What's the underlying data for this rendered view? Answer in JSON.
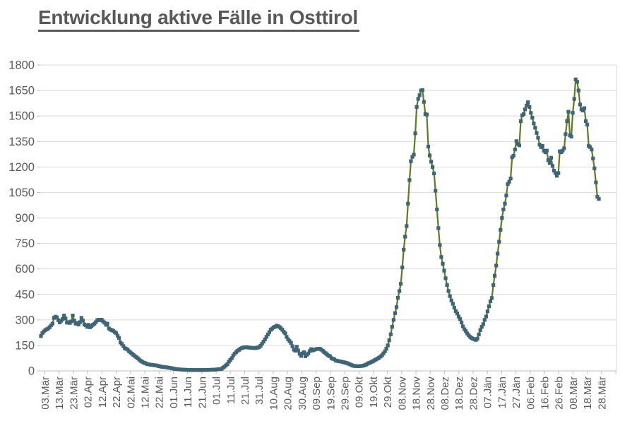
{
  "page": {
    "background": "#ffffff"
  },
  "chart_data": {
    "type": "line",
    "title": "Entwicklung aktive Fälle in Osttirol",
    "title_color": "#595959",
    "axis_text_color": "#595959",
    "grid": {
      "show": true,
      "color": "#d9d9d9",
      "axis_color": "#bfbfbf"
    },
    "legend": {
      "show": false
    },
    "x_axis": {
      "label_interval_days": 10,
      "labels": [
        "03.Mär",
        "13.Mär",
        "23.Mär",
        "02.Apr",
        "12.Apr",
        "22.Apr",
        "02.Mai",
        "12.Mai",
        "22.Mai",
        "01.Jun",
        "11.Jun",
        "21.Jun",
        "01.Jul",
        "11.Jul",
        "21.Jul",
        "31.Jul",
        "10.Aug",
        "20.Aug",
        "30.Aug",
        "09.Sep",
        "19.Sep",
        "29.Sep",
        "09.Okt",
        "19.Okt",
        "29.Okt",
        "08.Nov",
        "18.Nov",
        "28.Nov",
        "08.Dez",
        "18.Dez",
        "28.Dez",
        "07.Jän",
        "17.Jän",
        "27.Jän",
        "06.Feb",
        "16.Feb",
        "26.Feb",
        "08.Mär",
        "18.Mär",
        "28.Mär"
      ]
    },
    "y_axis": {
      "min": 0,
      "max": 1800,
      "step": 150,
      "labels": [
        "0",
        "150",
        "300",
        "450",
        "600",
        "750",
        "900",
        "1050",
        "1200",
        "1350",
        "1500",
        "1650",
        "1800"
      ]
    },
    "series": [
      {
        "marker": "square",
        "line_color": "#5d7c21",
        "marker_color": "#3e6476",
        "points": [
          [
            0,
            205
          ],
          [
            1,
            222
          ],
          [
            2,
            232
          ],
          [
            3,
            240
          ],
          [
            5,
            250
          ],
          [
            6,
            257
          ],
          [
            7,
            268
          ],
          [
            8,
            278
          ],
          [
            9,
            312
          ],
          [
            10,
            319
          ],
          [
            11,
            315
          ],
          [
            12,
            298
          ],
          [
            13,
            285
          ],
          [
            14,
            295
          ],
          [
            15,
            305
          ],
          [
            16,
            326
          ],
          [
            17,
            309
          ],
          [
            18,
            284
          ],
          [
            19,
            287
          ],
          [
            20,
            282
          ],
          [
            21,
            291
          ],
          [
            22,
            326
          ],
          [
            23,
            296
          ],
          [
            24,
            278
          ],
          [
            25,
            282
          ],
          [
            26,
            273
          ],
          [
            27,
            287
          ],
          [
            28,
            312
          ],
          [
            29,
            296
          ],
          [
            30,
            273
          ],
          [
            31,
            268
          ],
          [
            32,
            259
          ],
          [
            33,
            271
          ],
          [
            34,
            257
          ],
          [
            35,
            264
          ],
          [
            36,
            271
          ],
          [
            37,
            278
          ],
          [
            38,
            287
          ],
          [
            39,
            298
          ],
          [
            40,
            301
          ],
          [
            41,
            298
          ],
          [
            42,
            301
          ],
          [
            43,
            291
          ],
          [
            44,
            284
          ],
          [
            45,
            271
          ],
          [
            46,
            278
          ],
          [
            47,
            250
          ],
          [
            48,
            243
          ],
          [
            49,
            240
          ],
          [
            50,
            236
          ],
          [
            51,
            229
          ],
          [
            52,
            222
          ],
          [
            53,
            208
          ],
          [
            54,
            194
          ],
          [
            55,
            167
          ],
          [
            56,
            159
          ],
          [
            57,
            146
          ],
          [
            58,
            134
          ],
          [
            60,
            125
          ],
          [
            61,
            115
          ],
          [
            63,
            101
          ],
          [
            65,
            87
          ],
          [
            67,
            74
          ],
          [
            69,
            59
          ],
          [
            71,
            49
          ],
          [
            74,
            39
          ],
          [
            77,
            35
          ],
          [
            80,
            32
          ],
          [
            83,
            25
          ],
          [
            86,
            22
          ],
          [
            89,
            18
          ],
          [
            93,
            11
          ],
          [
            97,
            8
          ],
          [
            101,
            6
          ],
          [
            106,
            5
          ],
          [
            111,
            5
          ],
          [
            116,
            6
          ],
          [
            121,
            8
          ],
          [
            125,
            12
          ],
          [
            127,
            25
          ],
          [
            129,
            40
          ],
          [
            130,
            54
          ],
          [
            131,
            64
          ],
          [
            132,
            75
          ],
          [
            133,
            90
          ],
          [
            134,
            101
          ],
          [
            135,
            110
          ],
          [
            136,
            118
          ],
          [
            137,
            124
          ],
          [
            138,
            131
          ],
          [
            140,
            137
          ],
          [
            142,
            140
          ],
          [
            144,
            137
          ],
          [
            146,
            135
          ],
          [
            148,
            134
          ],
          [
            150,
            137
          ],
          [
            151,
            140
          ],
          [
            152,
            148
          ],
          [
            153,
            160
          ],
          [
            154,
            172
          ],
          [
            155,
            186
          ],
          [
            156,
            200
          ],
          [
            157,
            214
          ],
          [
            158,
            228
          ],
          [
            159,
            242
          ],
          [
            160,
            249
          ],
          [
            161,
            256
          ],
          [
            162,
            260
          ],
          [
            163,
            266
          ],
          [
            164,
            263
          ],
          [
            165,
            258
          ],
          [
            166,
            252
          ],
          [
            167,
            242
          ],
          [
            168,
            230
          ],
          [
            169,
            221
          ],
          [
            170,
            200
          ],
          [
            171,
            186
          ],
          [
            172,
            175
          ],
          [
            173,
            165
          ],
          [
            174,
            145
          ],
          [
            175,
            125
          ],
          [
            176,
            119
          ],
          [
            177,
            142
          ],
          [
            178,
            120
          ],
          [
            179,
            100
          ],
          [
            180,
            88
          ],
          [
            181,
            103
          ],
          [
            182,
            110
          ],
          [
            183,
            86
          ],
          [
            184,
            95
          ],
          [
            185,
            103
          ],
          [
            186,
            117
          ],
          [
            187,
            128
          ],
          [
            188,
            120
          ],
          [
            189,
            124
          ],
          [
            190,
            127
          ],
          [
            191,
            129
          ],
          [
            192,
            130
          ],
          [
            193,
            130
          ],
          [
            194,
            125
          ],
          [
            195,
            118
          ],
          [
            196,
            110
          ],
          [
            197,
            104
          ],
          [
            198,
            96
          ],
          [
            199,
            90
          ],
          [
            200,
            86
          ],
          [
            201,
            75
          ],
          [
            202,
            71
          ],
          [
            203,
            68
          ],
          [
            204,
            61
          ],
          [
            206,
            57
          ],
          [
            208,
            54
          ],
          [
            210,
            50
          ],
          [
            212,
            45
          ],
          [
            214,
            38
          ],
          [
            216,
            30
          ],
          [
            218,
            28
          ],
          [
            220,
            28
          ],
          [
            222,
            29
          ],
          [
            224,
            33
          ],
          [
            226,
            42
          ],
          [
            228,
            50
          ],
          [
            230,
            58
          ],
          [
            232,
            68
          ],
          [
            234,
            78
          ],
          [
            236,
            92
          ],
          [
            237,
            103
          ],
          [
            238,
            115
          ],
          [
            239,
            130
          ],
          [
            240,
            150
          ],
          [
            241,
            180
          ],
          [
            242,
            215
          ],
          [
            243,
            260
          ],
          [
            244,
            300
          ],
          [
            245,
            340
          ],
          [
            246,
            375
          ],
          [
            247,
            430
          ],
          [
            248,
            470
          ],
          [
            249,
            512
          ],
          [
            250,
            609
          ],
          [
            251,
            713
          ],
          [
            252,
            790
          ],
          [
            253,
            852
          ],
          [
            254,
            984
          ],
          [
            255,
            1123
          ],
          [
            256,
            1234
          ],
          [
            257,
            1259
          ],
          [
            258,
            1273
          ],
          [
            259,
            1398
          ],
          [
            260,
            1553
          ],
          [
            261,
            1601
          ],
          [
            262,
            1622
          ],
          [
            263,
            1650
          ],
          [
            264,
            1653
          ],
          [
            265,
            1583
          ],
          [
            266,
            1511
          ],
          [
            267,
            1508
          ],
          [
            268,
            1320
          ],
          [
            269,
            1268
          ],
          [
            270,
            1231
          ],
          [
            271,
            1200
          ],
          [
            272,
            1162
          ],
          [
            273,
            1060
          ],
          [
            274,
            950
          ],
          [
            275,
            840
          ],
          [
            276,
            740
          ],
          [
            277,
            670
          ],
          [
            278,
            630
          ],
          [
            279,
            590
          ],
          [
            280,
            545
          ],
          [
            281,
            505
          ],
          [
            282,
            470
          ],
          [
            283,
            440
          ],
          [
            284,
            415
          ],
          [
            285,
            395
          ],
          [
            286,
            372
          ],
          [
            287,
            352
          ],
          [
            288,
            338
          ],
          [
            289,
            320
          ],
          [
            290,
            305
          ],
          [
            291,
            285
          ],
          [
            292,
            262
          ],
          [
            293,
            245
          ],
          [
            294,
            234
          ],
          [
            295,
            220
          ],
          [
            296,
            209
          ],
          [
            297,
            200
          ],
          [
            298,
            193
          ],
          [
            299,
            189
          ],
          [
            300,
            186
          ],
          [
            301,
            182
          ],
          [
            302,
            190
          ],
          [
            303,
            215
          ],
          [
            304,
            240
          ],
          [
            305,
            259
          ],
          [
            306,
            275
          ],
          [
            307,
            300
          ],
          [
            308,
            320
          ],
          [
            309,
            350
          ],
          [
            310,
            380
          ],
          [
            311,
            410
          ],
          [
            312,
            429
          ],
          [
            313,
            505
          ],
          [
            314,
            560
          ],
          [
            315,
            620
          ],
          [
            316,
            690
          ],
          [
            317,
            760
          ],
          [
            318,
            830
          ],
          [
            319,
            900
          ],
          [
            320,
            950
          ],
          [
            321,
            984
          ],
          [
            322,
            1032
          ],
          [
            323,
            1100
          ],
          [
            324,
            1113
          ],
          [
            325,
            1132
          ],
          [
            326,
            1257
          ],
          [
            327,
            1266
          ],
          [
            328,
            1303
          ],
          [
            329,
            1352
          ],
          [
            330,
            1335
          ],
          [
            331,
            1327
          ],
          [
            332,
            1470
          ],
          [
            333,
            1504
          ],
          [
            334,
            1511
          ],
          [
            335,
            1539
          ],
          [
            336,
            1562
          ],
          [
            337,
            1581
          ],
          [
            338,
            1553
          ],
          [
            339,
            1518
          ],
          [
            340,
            1490
          ],
          [
            341,
            1456
          ],
          [
            342,
            1431
          ],
          [
            343,
            1400
          ],
          [
            344,
            1372
          ],
          [
            345,
            1331
          ],
          [
            346,
            1317
          ],
          [
            347,
            1324
          ],
          [
            348,
            1296
          ],
          [
            349,
            1286
          ],
          [
            350,
            1296
          ],
          [
            351,
            1240
          ],
          [
            352,
            1223
          ],
          [
            353,
            1254
          ],
          [
            354,
            1206
          ],
          [
            355,
            1178
          ],
          [
            356,
            1164
          ],
          [
            357,
            1148
          ],
          [
            358,
            1164
          ],
          [
            359,
            1292
          ],
          [
            360,
            1286
          ],
          [
            361,
            1296
          ],
          [
            362,
            1310
          ],
          [
            363,
            1393
          ],
          [
            364,
            1470
          ],
          [
            365,
            1525
          ],
          [
            366,
            1386
          ],
          [
            367,
            1379
          ],
          [
            368,
            1518
          ],
          [
            369,
            1600
          ],
          [
            370,
            1715
          ],
          [
            371,
            1701
          ],
          [
            372,
            1650
          ],
          [
            373,
            1567
          ],
          [
            374,
            1539
          ],
          [
            375,
            1532
          ],
          [
            376,
            1546
          ],
          [
            377,
            1470
          ],
          [
            378,
            1449
          ],
          [
            379,
            1324
          ],
          [
            380,
            1317
          ],
          [
            381,
            1303
          ],
          [
            382,
            1250
          ],
          [
            383,
            1192
          ],
          [
            384,
            1109
          ],
          [
            385,
            1025
          ],
          [
            386,
            1012
          ]
        ]
      }
    ]
  }
}
